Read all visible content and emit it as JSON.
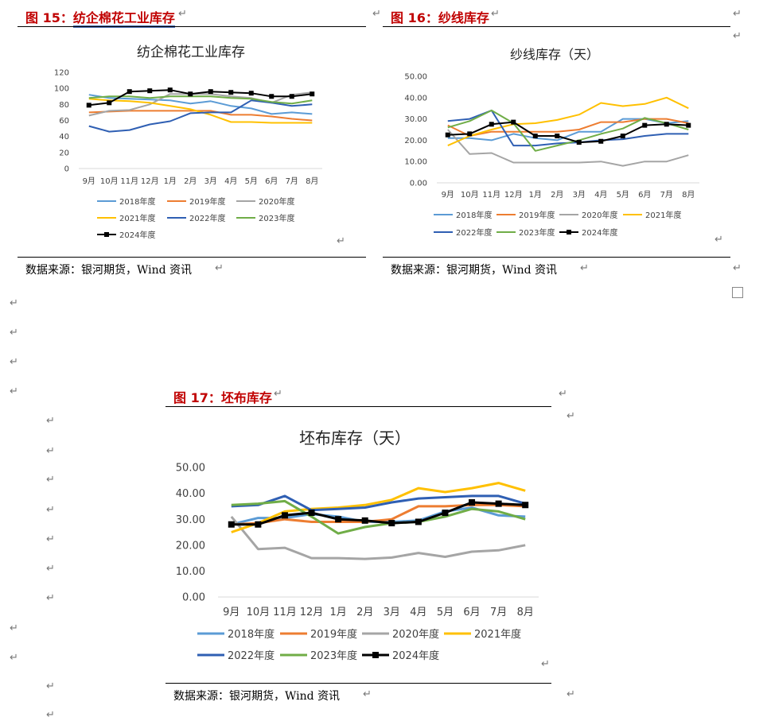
{
  "paragraph_mark": "↵",
  "source_text": "数据来源：银河期货，Wind 资讯",
  "fig15": {
    "label": "图 15：",
    "title": "纺企棉花工业库存"
  },
  "fig16": {
    "label": "图 16：",
    "title": "纱线库存"
  },
  "fig17": {
    "label": "图 17：",
    "title": "坯布库存"
  },
  "chart_data": [
    {
      "type": "line",
      "title": "纺企棉花工业库存",
      "categories": [
        "9月",
        "10月",
        "11月",
        "12月",
        "1月",
        "2月",
        "3月",
        "4月",
        "5月",
        "6月",
        "7月",
        "8月"
      ],
      "ylim": [
        0,
        120
      ],
      "yticks": [
        "0",
        "20",
        "40",
        "60",
        "80",
        "100",
        "120"
      ],
      "legend_placement": "bottom",
      "series": [
        {
          "name": "2018年度",
          "color": "#5b9bd5",
          "marker": false,
          "values": [
            92,
            88,
            87,
            86,
            85,
            81,
            84,
            78,
            75,
            68,
            70,
            68
          ]
        },
        {
          "name": "2019年度",
          "color": "#ed7d31",
          "marker": false,
          "values": [
            70,
            71,
            72,
            72,
            72,
            72,
            72,
            67,
            67,
            65,
            62,
            60
          ]
        },
        {
          "name": "2020年度",
          "color": "#a5a5a5",
          "marker": false,
          "values": [
            66,
            72,
            73,
            80,
            93,
            93,
            93,
            90,
            88,
            82,
            92,
            95
          ]
        },
        {
          "name": "2021年度",
          "color": "#ffc000",
          "marker": false,
          "values": [
            87,
            85,
            84,
            82,
            78,
            74,
            67,
            58,
            58,
            57,
            57,
            57
          ]
        },
        {
          "name": "2022年度",
          "color": "#2f5fb3",
          "marker": false,
          "values": [
            53,
            46,
            48,
            55,
            59,
            69,
            70,
            70,
            85,
            82,
            78,
            80
          ]
        },
        {
          "name": "2023年度",
          "color": "#70ad47",
          "marker": false,
          "values": [
            88,
            90,
            90,
            88,
            90,
            90,
            90,
            88,
            87,
            83,
            81,
            85
          ]
        },
        {
          "name": "2024年度",
          "color": "#000000",
          "marker": true,
          "values": [
            79,
            82,
            96,
            97,
            98,
            93,
            96,
            95,
            94,
            90,
            90,
            93
          ]
        }
      ]
    },
    {
      "type": "line",
      "title": "纱线库存（天）",
      "categories": [
        "9月",
        "10月",
        "11月",
        "12月",
        "1月",
        "2月",
        "3月",
        "4月",
        "5月",
        "6月",
        "7月",
        "8月"
      ],
      "ylim": [
        0,
        50
      ],
      "yticks": [
        "0.00",
        "10.00",
        "20.00",
        "30.00",
        "40.00",
        "50.00"
      ],
      "legend_placement": "bottom",
      "series": [
        {
          "name": "2018年度",
          "color": "#5b9bd5",
          "marker": false,
          "values": [
            21,
            21,
            20,
            23,
            21,
            20,
            24,
            24,
            30,
            30,
            28,
            29
          ]
        },
        {
          "name": "2019年度",
          "color": "#ed7d31",
          "marker": false,
          "values": [
            27,
            22,
            24,
            24,
            24,
            24,
            25,
            28.5,
            28.5,
            30,
            30,
            28
          ]
        },
        {
          "name": "2020年度",
          "color": "#a5a5a5",
          "marker": false,
          "values": [
            25,
            13.5,
            14,
            9.5,
            9.5,
            9.5,
            9.5,
            10,
            8,
            10,
            10,
            13
          ]
        },
        {
          "name": "2021年度",
          "color": "#ffc000",
          "marker": false,
          "values": [
            17.5,
            22,
            25,
            27.5,
            28,
            29.5,
            32,
            37.5,
            36,
            37,
            40,
            35
          ]
        },
        {
          "name": "2022年度",
          "color": "#2f5fb3",
          "marker": false,
          "values": [
            29,
            30,
            34,
            17.5,
            17.5,
            18.5,
            19,
            20,
            20.5,
            22,
            23,
            23
          ]
        },
        {
          "name": "2023年度",
          "color": "#70ad47",
          "marker": false,
          "values": [
            26,
            29,
            34,
            28,
            15,
            17.5,
            20,
            23,
            25.5,
            30.5,
            28,
            25
          ]
        },
        {
          "name": "2024年度",
          "color": "#000000",
          "marker": true,
          "values": [
            22.5,
            23,
            27.5,
            28.5,
            22,
            22,
            19,
            19.5,
            22,
            27,
            27.5,
            27
          ]
        }
      ]
    },
    {
      "type": "line",
      "title": "坯布库存（天）",
      "categories": [
        "9月",
        "10月",
        "11月",
        "12月",
        "1月",
        "2月",
        "3月",
        "4月",
        "5月",
        "6月",
        "7月",
        "8月"
      ],
      "ylim": [
        0,
        50
      ],
      "yticks": [
        "0.00",
        "10.00",
        "20.00",
        "30.00",
        "40.00",
        "50.00"
      ],
      "legend_placement": "bottom",
      "series": [
        {
          "name": "2018年度",
          "color": "#5b9bd5",
          "marker": false,
          "values": [
            28,
            30.5,
            30.5,
            32,
            31,
            29,
            29,
            29.5,
            33,
            34.5,
            31.5,
            31
          ]
        },
        {
          "name": "2019年度",
          "color": "#ed7d31",
          "marker": false,
          "values": [
            28,
            28.5,
            30,
            29,
            29,
            29,
            30,
            35,
            35,
            35.5,
            35.5,
            35
          ]
        },
        {
          "name": "2020年度",
          "color": "#a5a5a5",
          "marker": false,
          "values": [
            31,
            18.5,
            19,
            15,
            15,
            14.7,
            15.2,
            17,
            15.5,
            17.5,
            18,
            20
          ]
        },
        {
          "name": "2021年度",
          "color": "#ffc000",
          "marker": false,
          "values": [
            25,
            28.5,
            33,
            34,
            34.5,
            35.5,
            37.5,
            42,
            40.5,
            42,
            44,
            41
          ]
        },
        {
          "name": "2022年度",
          "color": "#2f5fb3",
          "marker": false,
          "values": [
            35,
            35.5,
            39,
            33.5,
            34,
            34.5,
            36.5,
            38,
            38.5,
            39,
            39,
            36
          ]
        },
        {
          "name": "2023年度",
          "color": "#70ad47",
          "marker": false,
          "values": [
            35.5,
            36,
            37,
            31,
            24.5,
            27,
            28.5,
            29,
            31,
            34,
            33,
            30
          ]
        },
        {
          "name": "2024年度",
          "color": "#000000",
          "marker": true,
          "values": [
            28,
            28,
            31.5,
            32.5,
            30,
            29.5,
            28.5,
            29,
            32.5,
            36.5,
            36,
            35.5
          ]
        }
      ]
    }
  ]
}
